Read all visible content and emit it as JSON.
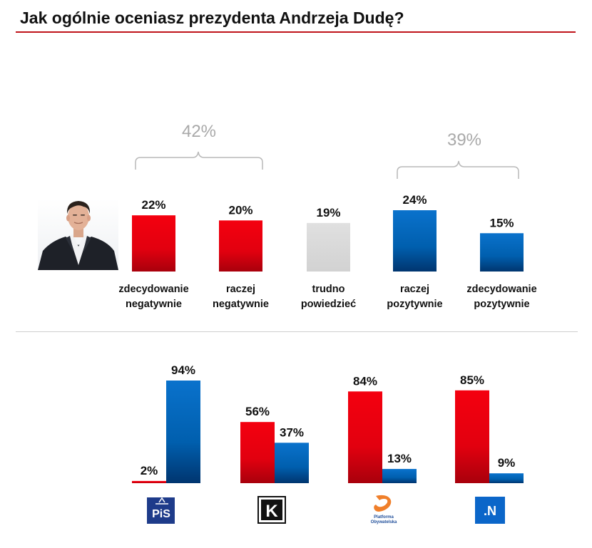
{
  "title": "Jak ogólnie oceniasz prezydenta Andrzeja Dudę?",
  "colors": {
    "negative": "#e2000f",
    "neutral": "#dcdcdc",
    "positive": "#0066bb",
    "title_rule": "#c0141b",
    "group_label": "#a9a9a9"
  },
  "chart_data": [
    {
      "type": "bar",
      "title": "",
      "categories": [
        "zdecydowanie\nnegatywnie",
        "raczej\nnegatywnie",
        "trudno\npowiedzieć",
        "raczej\npozytywnie",
        "zdecydowanie\npozytywnie"
      ],
      "values": [
        22,
        20,
        19,
        24,
        15
      ],
      "value_labels": [
        "22%",
        "20%",
        "19%",
        "24%",
        "15%"
      ],
      "colors": [
        "negative",
        "negative",
        "neutral",
        "positive",
        "positive"
      ],
      "groups": [
        {
          "label": "42%",
          "value": 42,
          "spans": [
            0,
            1
          ]
        },
        {
          "label": "39%",
          "value": 39,
          "spans": [
            3,
            4
          ]
        }
      ],
      "ylim": [
        0,
        24
      ],
      "grid": false,
      "image": "politician-portrait"
    },
    {
      "type": "bar",
      "categories": [
        "PiS",
        "Kukiz'15",
        "Platforma Obywatelska",
        ".N"
      ],
      "category_icons": [
        "pis-logo",
        "kukiz-logo",
        "po-logo",
        "nowoczesna-logo"
      ],
      "series": [
        {
          "color": "negative",
          "values": [
            2,
            56,
            84,
            85
          ],
          "labels": [
            "2%",
            "56%",
            "84%",
            "85%"
          ]
        },
        {
          "color": "positive",
          "values": [
            94,
            37,
            13,
            9
          ],
          "labels": [
            "94%",
            "37%",
            "13%",
            "9%"
          ]
        }
      ],
      "ylim": [
        0,
        94
      ],
      "grid": false
    }
  ],
  "logos": {
    "pis_text": "PiS",
    "kukiz_text": "K",
    "po_line1": "Platforma",
    "po_line2": "Obywatelska",
    "n_text": ".N"
  }
}
